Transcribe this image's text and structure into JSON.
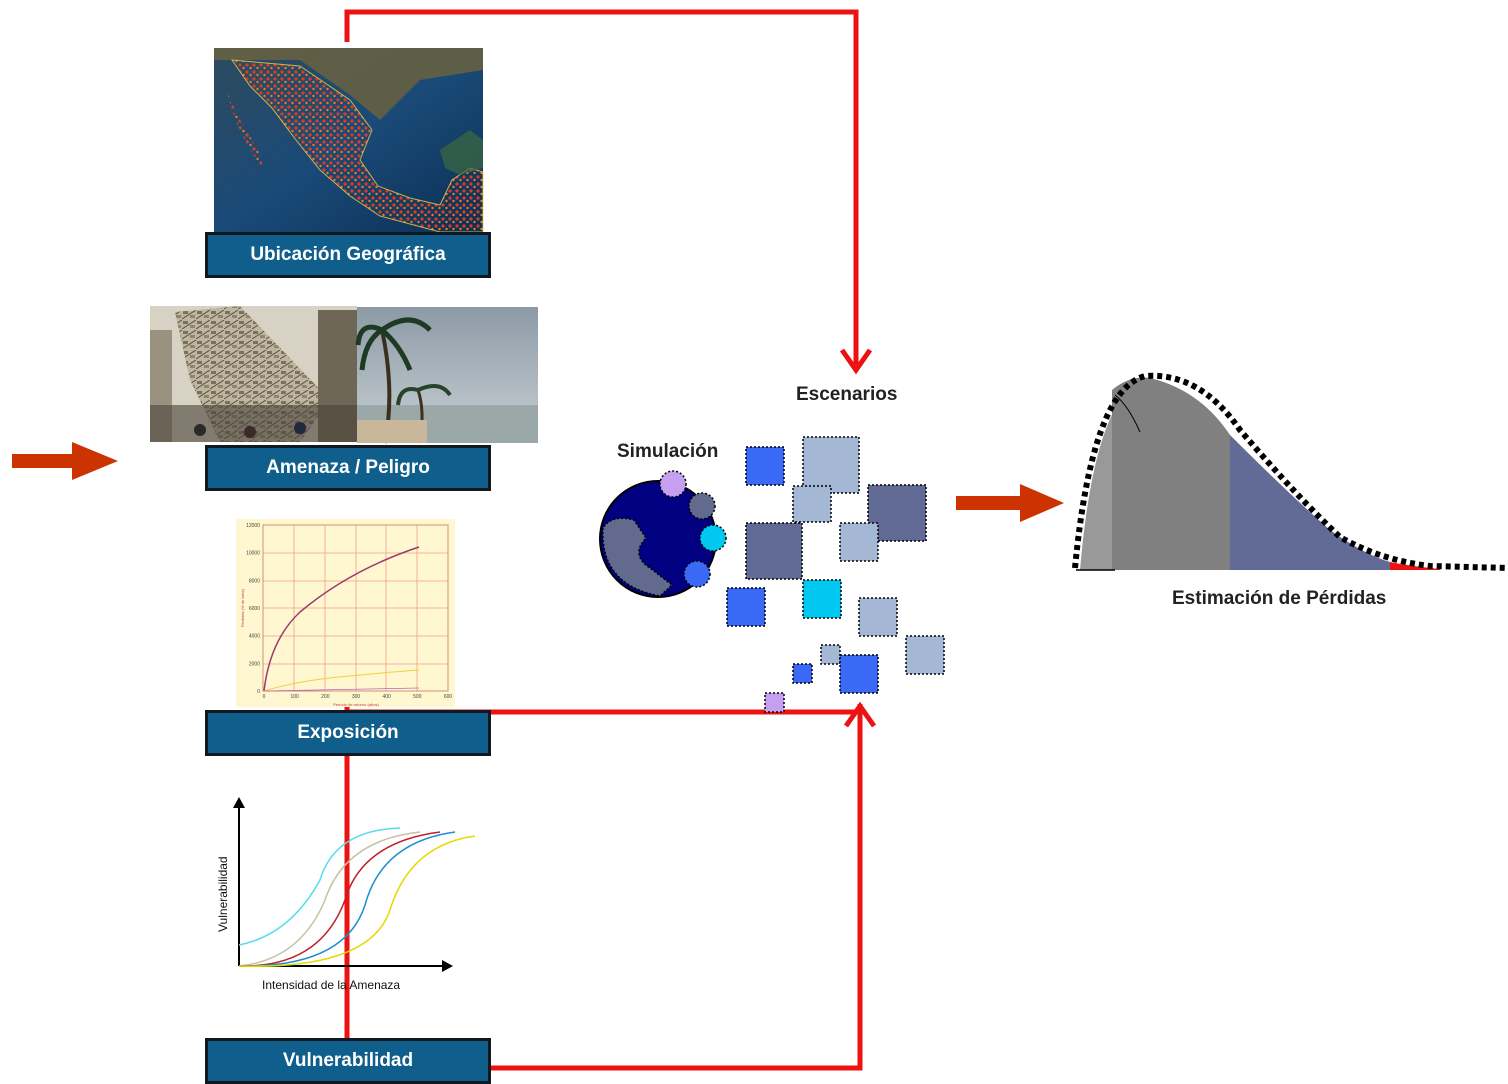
{
  "labels": {
    "location": "Ubicación Geográfica",
    "hazard": "Amenaza / Peligro",
    "exposure": "Exposición",
    "vulnerability": "Vulnerabilidad",
    "scenarios": "Escenarios",
    "simulation": "Simulación",
    "loss_estimation": "Estimación de Pérdidas"
  },
  "vulnerability_chart": {
    "ylabel": "Vulnerabilidad",
    "xlabel": "Intensidad de la Amenaza",
    "curve_colors": [
      "#55ddee",
      "#c8c0a0",
      "#c0202a",
      "#1a8fd0",
      "#e8d800"
    ]
  },
  "exposure_chart": {
    "y_ticks": [
      "12000",
      "10000",
      "8000",
      "6000",
      "4000",
      "2000",
      "0"
    ],
    "x_ticks": [
      "0",
      "100",
      "200",
      "300",
      "400",
      "500",
      "600"
    ],
    "xlabel": "Periodo de retorno (años)",
    "ylabel": "Pérdidas (% de valor)"
  },
  "colors": {
    "feedback_arrow": "#ee1111",
    "flow_arrow": "#cc3300",
    "label_box": "#0f5e8c"
  }
}
